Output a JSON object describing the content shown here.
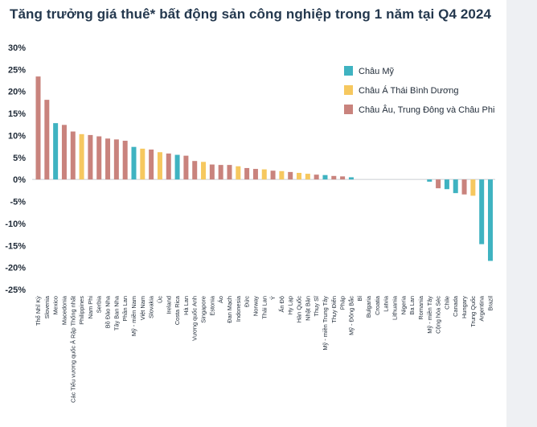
{
  "title": "Tăng trưởng giá thuê* bất động sản công nghiệp trong 1 năm tại Q4 2024",
  "chart_data": {
    "type": "bar",
    "ylim": [
      -25,
      30
    ],
    "yticks": [
      30,
      25,
      20,
      15,
      10,
      5,
      0,
      -5,
      -10,
      -15,
      -20,
      -25
    ],
    "ytick_labels": [
      "30%",
      "25%",
      "20%",
      "15%",
      "10%",
      "5%",
      "0%",
      "-5%",
      "-10%",
      "-15%",
      "-20%",
      "-25%"
    ],
    "grid": false,
    "legend_position": "top-right",
    "groups": [
      {
        "key": "americas",
        "name": "Châu Mỹ",
        "color": "#3fb3c1"
      },
      {
        "key": "apac",
        "name": "Châu Á Thái Bình Dương",
        "color": "#f6c85f"
      },
      {
        "key": "emea",
        "name": "Châu Âu, Trung Đông và Châu Phi",
        "color": "#c9837d"
      }
    ],
    "categories": [
      "Thổ Nhĩ Kỳ",
      "Slovenia",
      "Mexico",
      "Macedonia",
      "Các Tiểu vương quốc Ả Rập Thống nhất",
      "Philippines",
      "Nam Phi",
      "Serbia",
      "Bồ Đào Nha",
      "Tây Ban Nha",
      "Phần Lan",
      "Mỹ - miền Nam",
      "Việt Nam",
      "Slovakia",
      "Úc",
      "Ireland",
      "Costa Rica",
      "Hà Lan",
      "Vương quốc Anh",
      "Singapore",
      "Estonia",
      "Áo",
      "Đan Mạch",
      "Indonesia",
      "Đức",
      "Norway",
      "Thái Lan",
      "Ý",
      "Ấn Độ",
      "Hy Lạp",
      "Hàn Quốc",
      "Nhật Bản",
      "Thụy Sĩ",
      "Mỹ - miền Trung Tây",
      "Thụy Điển",
      "Pháp",
      "Mỹ - Đông Bắc",
      "Bỉ",
      "Bulgaria",
      "Croatia",
      "Latvia",
      "Lithuania",
      "Nigeria",
      "Ba Lan",
      "Romania",
      "Mỹ - miền Tây",
      "Cộng hòa Séc",
      "Chile",
      "Canada",
      "Hungary",
      "Trung Quốc",
      "Argentina",
      "Brazil"
    ],
    "values": [
      23.4,
      18.1,
      12.8,
      12.4,
      10.9,
      10.3,
      10.1,
      9.8,
      9.3,
      9.1,
      8.8,
      7.4,
      7.0,
      6.8,
      6.2,
      5.9,
      5.6,
      5.4,
      4.2,
      4.0,
      3.4,
      3.3,
      3.3,
      3.0,
      2.6,
      2.4,
      2.3,
      2.0,
      1.9,
      1.7,
      1.5,
      1.3,
      1.1,
      1.0,
      0.8,
      0.7,
      0.5,
      0,
      0,
      0,
      0,
      0,
      0,
      0,
      0,
      -0.5,
      -2.0,
      -2.2,
      -3.1,
      -3.4,
      -3.7,
      -14.7,
      -18.5
    ],
    "region": [
      "emea",
      "emea",
      "americas",
      "emea",
      "emea",
      "apac",
      "emea",
      "emea",
      "emea",
      "emea",
      "emea",
      "americas",
      "apac",
      "emea",
      "apac",
      "emea",
      "americas",
      "emea",
      "emea",
      "apac",
      "emea",
      "emea",
      "emea",
      "apac",
      "emea",
      "emea",
      "apac",
      "emea",
      "apac",
      "emea",
      "apac",
      "apac",
      "emea",
      "americas",
      "emea",
      "emea",
      "americas",
      "emea",
      "emea",
      "emea",
      "emea",
      "emea",
      "emea",
      "emea",
      "emea",
      "americas",
      "emea",
      "americas",
      "americas",
      "emea",
      "apac",
      "americas",
      "americas"
    ]
  }
}
